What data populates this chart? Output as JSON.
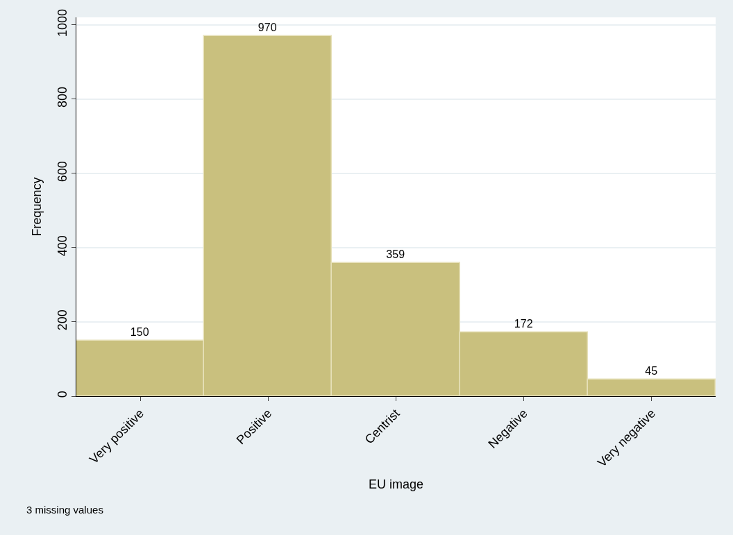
{
  "chart_data": {
    "type": "bar",
    "xlabel": "EU image",
    "ylabel": "Frequency",
    "categories": [
      "Very positive",
      "Positive",
      "Centrist",
      "Negative",
      "Very negative"
    ],
    "values": [
      150,
      970,
      359,
      172,
      45
    ],
    "color": "#c9c07e",
    "data_labels": true,
    "ylim": [
      0,
      1020
    ],
    "yticks": [
      0,
      200,
      400,
      600,
      800,
      1000
    ],
    "grid": "y",
    "annotations": [
      "3 missing values"
    ]
  }
}
